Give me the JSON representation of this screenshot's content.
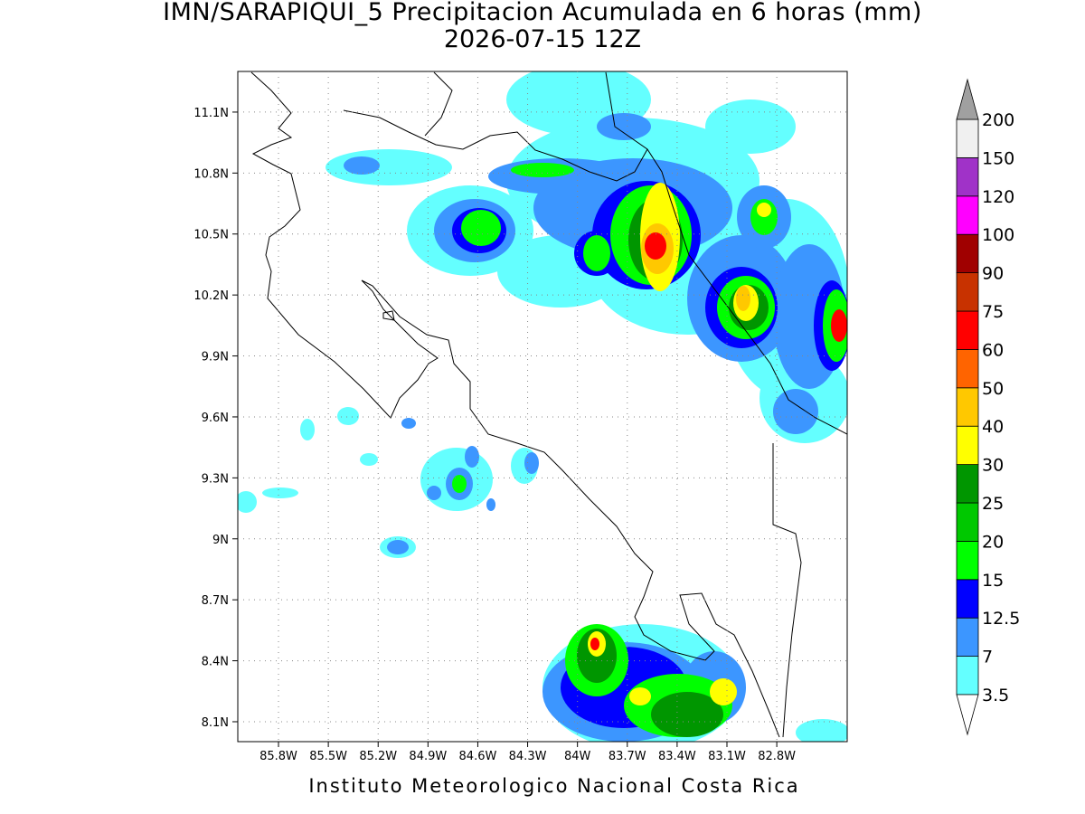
{
  "header": {
    "title": "IMN/SARAPIQUI_5 Precipitacion Acumulada en 6 horas (mm)",
    "subtitle": "2026-07-15 12Z"
  },
  "map": {
    "xlim": [
      -86.045,
      -82.376
    ],
    "ylim": [
      8.002,
      11.3
    ],
    "xticks": [
      {
        "value": -85.8,
        "label": "85.8W"
      },
      {
        "value": -85.5,
        "label": "85.5W"
      },
      {
        "value": -85.2,
        "label": "85.2W"
      },
      {
        "value": -84.9,
        "label": "84.9W"
      },
      {
        "value": -84.6,
        "label": "84.6W"
      },
      {
        "value": -84.3,
        "label": "84.3W"
      },
      {
        "value": -84.0,
        "label": "84W"
      },
      {
        "value": -83.7,
        "label": "83.7W"
      },
      {
        "value": -83.4,
        "label": "83.4W"
      },
      {
        "value": -83.1,
        "label": "83.1W"
      },
      {
        "value": -82.8,
        "label": "82.8W"
      }
    ],
    "yticks": [
      {
        "value": 11.1,
        "label": "11.1N"
      },
      {
        "value": 10.8,
        "label": "10.8N"
      },
      {
        "value": 10.5,
        "label": "10.5N"
      },
      {
        "value": 10.2,
        "label": "10.2N"
      },
      {
        "value": 9.9,
        "label": "9.9N"
      },
      {
        "value": 9.6,
        "label": "9.6N"
      },
      {
        "value": 9.3,
        "label": "9.3N"
      },
      {
        "value": 9.0,
        "label": "9N"
      },
      {
        "value": 8.7,
        "label": "8.7N"
      },
      {
        "value": 8.4,
        "label": "8.4N"
      },
      {
        "value": 8.1,
        "label": "8.1N"
      }
    ],
    "grid": true
  },
  "colorbar": {
    "levels": [
      3.5,
      7,
      12.5,
      15,
      20,
      25,
      30,
      40,
      50,
      60,
      75,
      90,
      100,
      120,
      150,
      200
    ],
    "colors": [
      "#64ffff",
      "#3c96ff",
      "#0000ff",
      "#00ff00",
      "#00c800",
      "#009600",
      "#ffff00",
      "#ffc800",
      "#ff6400",
      "#ff0000",
      "#c83200",
      "#a00000",
      "#ff00ff",
      "#a032c8",
      "#f0f0f0"
    ],
    "under_color": "#ffffff",
    "over_color": "#a0a0a0"
  },
  "footer": {
    "credit": "Instituto Meteorologico Nacional Costa Rica"
  }
}
